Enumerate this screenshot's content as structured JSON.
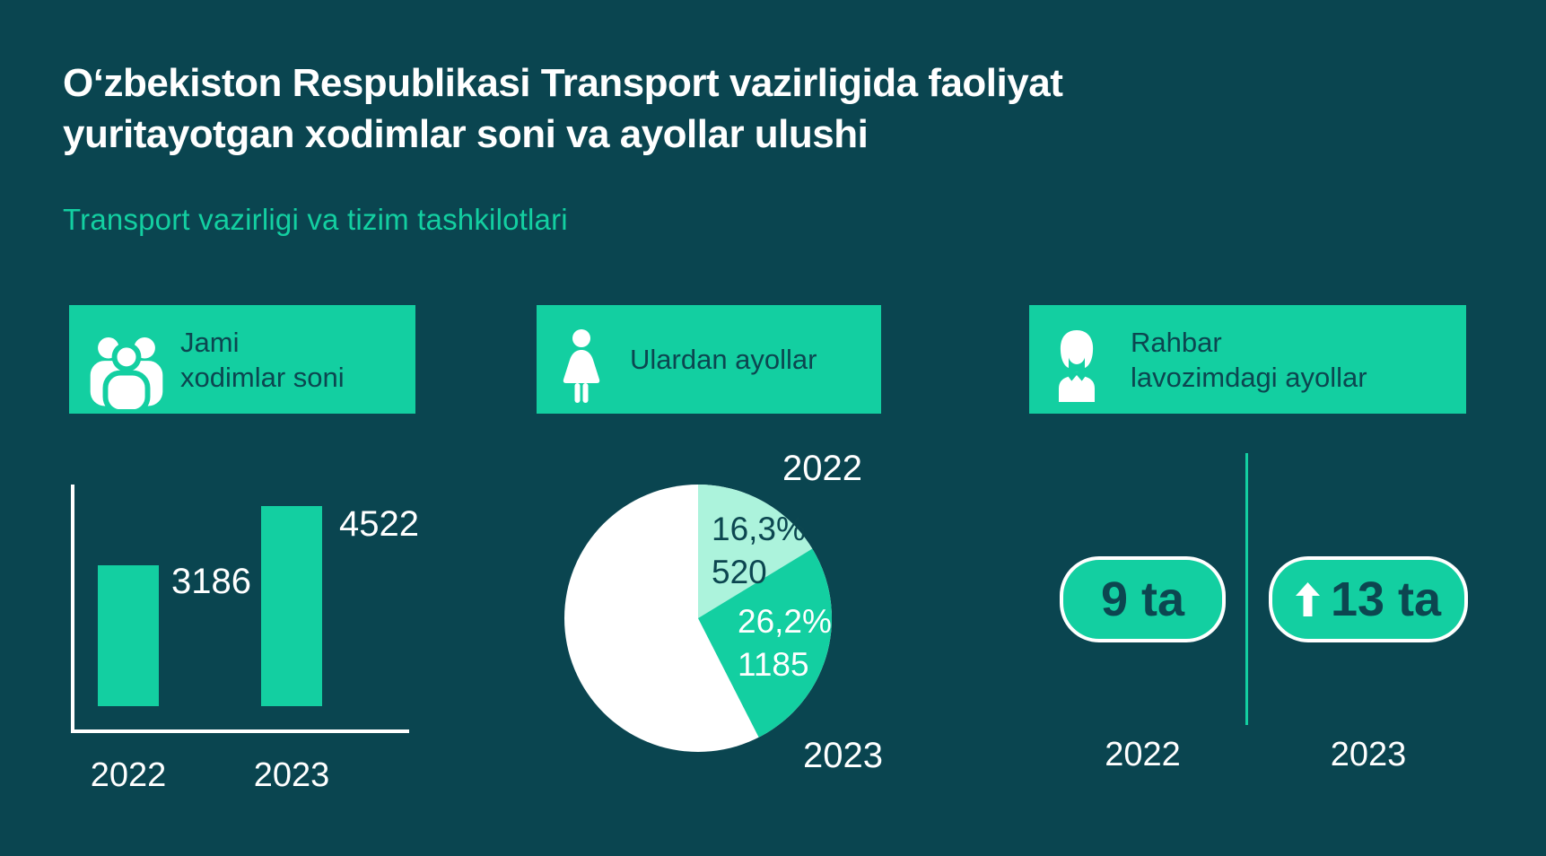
{
  "colors": {
    "background": "#0A4550",
    "accent_green": "#13CFA1",
    "accent_light_green": "#ACF3DC",
    "dark_text": "#0C4650",
    "white": "#FFFFFF"
  },
  "title": {
    "line1": "Oʻzbekiston Respublikasi Transport vazirligida faoliyat",
    "line2": "yuritayotgan xodimlar soni va ayollar ulushi"
  },
  "subtitle": "Transport vazirligi va tizim tashkilotlari",
  "sections": {
    "total": {
      "icon": "people-group-icon",
      "header_line1": "Jami",
      "header_line2": "xodimlar soni"
    },
    "women": {
      "icon": "woman-icon",
      "header_line1": "Ulardan ayollar",
      "header_line2": ""
    },
    "leaders": {
      "icon": "businesswoman-icon",
      "header_line1": "Rahbar",
      "header_line2": "lavozimdagi ayollar"
    }
  },
  "chart_data": [
    {
      "type": "bar",
      "section": "Jami xodimlar soni",
      "categories": [
        "2022",
        "2023"
      ],
      "values": [
        3186,
        4522
      ],
      "value_labels": [
        "3186",
        "4522"
      ],
      "ylim": [
        0,
        4522
      ],
      "bar_color": "#13CFA1",
      "axis_color": "#FFFFFF",
      "grid": false
    },
    {
      "type": "pie",
      "section": "Ulardan ayollar",
      "start_angle_deg": 0,
      "direction": "clockwise",
      "slices": [
        {
          "label": "2022",
          "percent": 16.3,
          "value": 520,
          "display_percent": "16,3%",
          "display_value": "520",
          "color": "#ACF3DC",
          "text_color": "#0C4650"
        },
        {
          "label": "2023",
          "percent": 26.2,
          "value": 1185,
          "display_percent": "26,2%",
          "display_value": "1185",
          "color": "#13CFA1",
          "text_color": "#FFFFFF"
        },
        {
          "percent": 57.5,
          "color": "#FFFFFF"
        }
      ]
    },
    {
      "type": "kpi",
      "section": "Rahbar lavozimdagi ayollar",
      "items": [
        {
          "label": "2022",
          "value": "9 ta",
          "arrow_up": false
        },
        {
          "label": "2023",
          "value": "13 ta",
          "arrow_up": true
        }
      ]
    }
  ]
}
